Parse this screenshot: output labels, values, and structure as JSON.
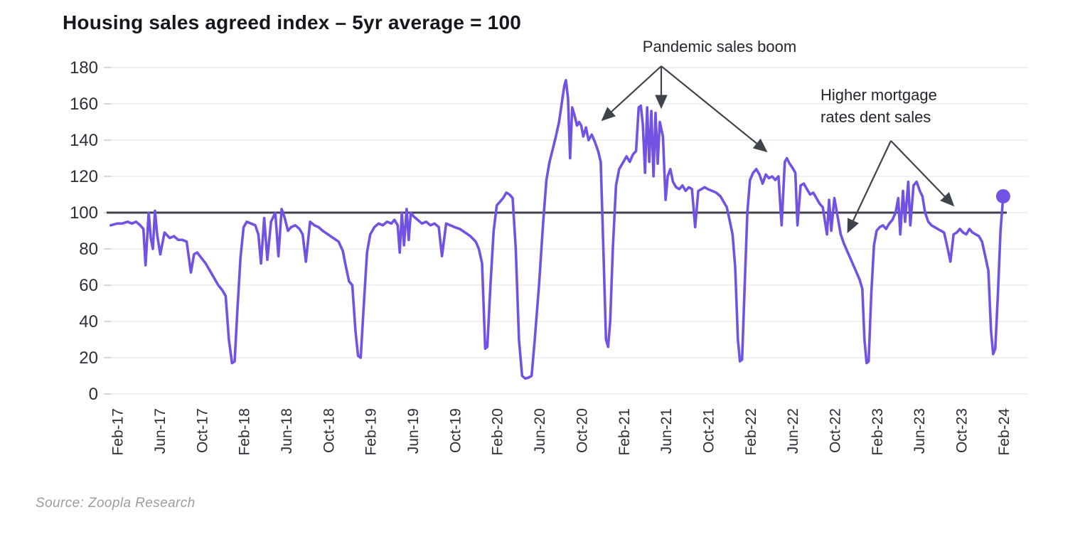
{
  "chart_data": {
    "type": "line",
    "title": "Housing sales agreed index – 5yr average = 100",
    "source": "Source:  Zoopla Research",
    "line_color": "#7152e2",
    "marker_color": "#7152e2",
    "reference_line": {
      "value": 100,
      "color": "#3f434b"
    },
    "grid_color": "#ececef",
    "tick_label_color": "#2c2f36",
    "arrow_color": "#3f434b",
    "ylim": [
      0,
      180
    ],
    "y_ticks": [
      0,
      20,
      40,
      60,
      80,
      100,
      120,
      140,
      160,
      180
    ],
    "x_tick_months": [
      0,
      4,
      8,
      12,
      16,
      20,
      24,
      28,
      32,
      36,
      40,
      44,
      48,
      52,
      56,
      60,
      64,
      68,
      72,
      76,
      80,
      84
    ],
    "x_tick_labels": [
      "Feb-17",
      "Jun-17",
      "Oct-17",
      "Feb-18",
      "Jun-18",
      "Oct-18",
      "Feb-19",
      "Jun-19",
      "Oct-19",
      "Feb-20",
      "Jun-20",
      "Oct-20",
      "Feb-21",
      "Jun-21",
      "Oct-21",
      "Feb-22",
      "Jun-22",
      "Oct-22",
      "Feb-23",
      "Jun-23",
      "Oct-23",
      "Feb-24"
    ],
    "series": [
      {
        "name": "Housing sales agreed index",
        "points": [
          [
            -0.6,
            93
          ],
          [
            0,
            94
          ],
          [
            0.5,
            94
          ],
          [
            1,
            95
          ],
          [
            1.4,
            94
          ],
          [
            1.8,
            95
          ],
          [
            2.2,
            93
          ],
          [
            2.5,
            91
          ],
          [
            2.7,
            71
          ],
          [
            3.0,
            100
          ],
          [
            3.2,
            86
          ],
          [
            3.4,
            80
          ],
          [
            3.6,
            101
          ],
          [
            3.8,
            88
          ],
          [
            4.1,
            77
          ],
          [
            4.5,
            89
          ],
          [
            5,
            86
          ],
          [
            5.4,
            87
          ],
          [
            5.8,
            85
          ],
          [
            6.2,
            85
          ],
          [
            6.6,
            84
          ],
          [
            7.0,
            67
          ],
          [
            7.3,
            77
          ],
          [
            7.6,
            78
          ],
          [
            8,
            75
          ],
          [
            8.4,
            72
          ],
          [
            8.8,
            68
          ],
          [
            9.2,
            64
          ],
          [
            9.6,
            60
          ],
          [
            10,
            57
          ],
          [
            10.3,
            54
          ],
          [
            10.6,
            30
          ],
          [
            10.9,
            17
          ],
          [
            11.15,
            18
          ],
          [
            11.4,
            45
          ],
          [
            11.7,
            75
          ],
          [
            12,
            92
          ],
          [
            12.3,
            95
          ],
          [
            12.7,
            94
          ],
          [
            13.1,
            93
          ],
          [
            13.4,
            88
          ],
          [
            13.65,
            72
          ],
          [
            13.95,
            97
          ],
          [
            14.25,
            74
          ],
          [
            14.6,
            95
          ],
          [
            15.0,
            100
          ],
          [
            15.3,
            76
          ],
          [
            15.6,
            102
          ],
          [
            15.9,
            97
          ],
          [
            16.2,
            90
          ],
          [
            16.5,
            92
          ],
          [
            16.9,
            93
          ],
          [
            17.3,
            91
          ],
          [
            17.6,
            88
          ],
          [
            17.9,
            73
          ],
          [
            18.3,
            95
          ],
          [
            18.7,
            93
          ],
          [
            19.1,
            92
          ],
          [
            19.5,
            90
          ],
          [
            20,
            88
          ],
          [
            20.5,
            86
          ],
          [
            21,
            84
          ],
          [
            21.4,
            79
          ],
          [
            21.7,
            70
          ],
          [
            22,
            62
          ],
          [
            22.3,
            60
          ],
          [
            22.6,
            35
          ],
          [
            22.85,
            21
          ],
          [
            23.1,
            20
          ],
          [
            23.4,
            50
          ],
          [
            23.7,
            78
          ],
          [
            24,
            88
          ],
          [
            24.4,
            92
          ],
          [
            24.8,
            94
          ],
          [
            25.2,
            93
          ],
          [
            25.6,
            95
          ],
          [
            26,
            94
          ],
          [
            26.3,
            96
          ],
          [
            26.6,
            93
          ],
          [
            26.8,
            78
          ],
          [
            27.0,
            100
          ],
          [
            27.2,
            82
          ],
          [
            27.45,
            102
          ],
          [
            27.65,
            85
          ],
          [
            27.85,
            100
          ],
          [
            28.1,
            98
          ],
          [
            28.5,
            96
          ],
          [
            28.9,
            94
          ],
          [
            29.3,
            95
          ],
          [
            29.7,
            93
          ],
          [
            30.1,
            94
          ],
          [
            30.5,
            92
          ],
          [
            30.8,
            76
          ],
          [
            31.2,
            94
          ],
          [
            31.6,
            93
          ],
          [
            32,
            92
          ],
          [
            32.5,
            91
          ],
          [
            33,
            89
          ],
          [
            33.5,
            87
          ],
          [
            34,
            84
          ],
          [
            34.3,
            80
          ],
          [
            34.6,
            72
          ],
          [
            34.9,
            25
          ],
          [
            35.1,
            26
          ],
          [
            35.4,
            60
          ],
          [
            35.7,
            90
          ],
          [
            36,
            104
          ],
          [
            36.3,
            106
          ],
          [
            36.6,
            108
          ],
          [
            36.9,
            111
          ],
          [
            37.2,
            110
          ],
          [
            37.5,
            108
          ],
          [
            37.8,
            80
          ],
          [
            38.1,
            30
          ],
          [
            38.4,
            10
          ],
          [
            38.7,
            8.5
          ],
          [
            39,
            9
          ],
          [
            39.3,
            10
          ],
          [
            39.6,
            30
          ],
          [
            40,
            60
          ],
          [
            40.4,
            95
          ],
          [
            40.7,
            118
          ],
          [
            41,
            128
          ],
          [
            41.3,
            135
          ],
          [
            41.6,
            142
          ],
          [
            41.9,
            150
          ],
          [
            42.2,
            162
          ],
          [
            42.4,
            170
          ],
          [
            42.55,
            173
          ],
          [
            42.75,
            163
          ],
          [
            42.95,
            130
          ],
          [
            43.15,
            158
          ],
          [
            43.4,
            153
          ],
          [
            43.6,
            148
          ],
          [
            43.8,
            150
          ],
          [
            44,
            148
          ],
          [
            44.2,
            142
          ],
          [
            44.45,
            147
          ],
          [
            44.7,
            140
          ],
          [
            45,
            143
          ],
          [
            45.3,
            139
          ],
          [
            45.6,
            134
          ],
          [
            45.85,
            128
          ],
          [
            46.1,
            80
          ],
          [
            46.35,
            30
          ],
          [
            46.55,
            26
          ],
          [
            46.75,
            40
          ],
          [
            47,
            80
          ],
          [
            47.3,
            115
          ],
          [
            47.6,
            124
          ],
          [
            48,
            128
          ],
          [
            48.3,
            131
          ],
          [
            48.6,
            128
          ],
          [
            48.9,
            132
          ],
          [
            49.2,
            134
          ],
          [
            49.45,
            158
          ],
          [
            49.65,
            159
          ],
          [
            49.85,
            148
          ],
          [
            50.05,
            122
          ],
          [
            50.25,
            158
          ],
          [
            50.45,
            128
          ],
          [
            50.65,
            156
          ],
          [
            50.85,
            120
          ],
          [
            51.05,
            155
          ],
          [
            51.25,
            127
          ],
          [
            51.45,
            150
          ],
          [
            51.75,
            142
          ],
          [
            52,
            107
          ],
          [
            52.2,
            120
          ],
          [
            52.45,
            124
          ],
          [
            52.7,
            117
          ],
          [
            53,
            114
          ],
          [
            53.3,
            113
          ],
          [
            53.6,
            115
          ],
          [
            53.9,
            112
          ],
          [
            54.2,
            114
          ],
          [
            54.5,
            113
          ],
          [
            54.8,
            92
          ],
          [
            55.1,
            112
          ],
          [
            55.4,
            113
          ],
          [
            55.7,
            114
          ],
          [
            56,
            113
          ],
          [
            56.4,
            112
          ],
          [
            56.8,
            111
          ],
          [
            57.2,
            109
          ],
          [
            57.5,
            106
          ],
          [
            57.8,
            103
          ],
          [
            58.1,
            95
          ],
          [
            58.35,
            88
          ],
          [
            58.6,
            70
          ],
          [
            58.85,
            30
          ],
          [
            59.05,
            18
          ],
          [
            59.25,
            19
          ],
          [
            59.5,
            60
          ],
          [
            59.75,
            100
          ],
          [
            60,
            118
          ],
          [
            60.3,
            122
          ],
          [
            60.6,
            124
          ],
          [
            60.9,
            121
          ],
          [
            61.2,
            116
          ],
          [
            61.5,
            121
          ],
          [
            61.8,
            119
          ],
          [
            62.1,
            120
          ],
          [
            62.4,
            118
          ],
          [
            62.7,
            120
          ],
          [
            63,
            93
          ],
          [
            63.3,
            128
          ],
          [
            63.5,
            130
          ],
          [
            63.75,
            127
          ],
          [
            64,
            125
          ],
          [
            64.3,
            122
          ],
          [
            64.5,
            93
          ],
          [
            64.8,
            115
          ],
          [
            65.1,
            116
          ],
          [
            65.4,
            113
          ],
          [
            65.7,
            110
          ],
          [
            66,
            111
          ],
          [
            66.3,
            108
          ],
          [
            66.6,
            105
          ],
          [
            66.9,
            103
          ],
          [
            67.3,
            88
          ],
          [
            67.5,
            107
          ],
          [
            67.7,
            90
          ],
          [
            68,
            108
          ],
          [
            68.3,
            98
          ],
          [
            68.6,
            88
          ],
          [
            68.9,
            83
          ],
          [
            69.2,
            79
          ],
          [
            69.5,
            75
          ],
          [
            69.8,
            71
          ],
          [
            70.1,
            67
          ],
          [
            70.4,
            63
          ],
          [
            70.65,
            58
          ],
          [
            70.85,
            30
          ],
          [
            71.05,
            17
          ],
          [
            71.25,
            18
          ],
          [
            71.5,
            55
          ],
          [
            71.75,
            82
          ],
          [
            72,
            90
          ],
          [
            72.3,
            92
          ],
          [
            72.6,
            93
          ],
          [
            72.9,
            91
          ],
          [
            73.2,
            94
          ],
          [
            73.5,
            96
          ],
          [
            73.8,
            100
          ],
          [
            74.05,
            108
          ],
          [
            74.25,
            88
          ],
          [
            74.5,
            112
          ],
          [
            74.7,
            95
          ],
          [
            75,
            117
          ],
          [
            75.2,
            93
          ],
          [
            75.5,
            115
          ],
          [
            75.8,
            117
          ],
          [
            76.1,
            112
          ],
          [
            76.35,
            109
          ],
          [
            76.6,
            100
          ],
          [
            76.9,
            95
          ],
          [
            77.2,
            93
          ],
          [
            77.5,
            92
          ],
          [
            77.8,
            91
          ],
          [
            78.1,
            90
          ],
          [
            78.4,
            89
          ],
          [
            78.75,
            80
          ],
          [
            79,
            73
          ],
          [
            79.3,
            88
          ],
          [
            79.6,
            89
          ],
          [
            79.9,
            91
          ],
          [
            80.2,
            89
          ],
          [
            80.5,
            88
          ],
          [
            80.8,
            91
          ],
          [
            81.1,
            89
          ],
          [
            81.4,
            88
          ],
          [
            81.7,
            87
          ],
          [
            82,
            84
          ],
          [
            82.3,
            76
          ],
          [
            82.6,
            68
          ],
          [
            82.85,
            35
          ],
          [
            83.05,
            22
          ],
          [
            83.25,
            25
          ],
          [
            83.5,
            55
          ],
          [
            83.75,
            90
          ],
          [
            84,
            109
          ]
        ]
      }
    ],
    "end_marker": {
      "month": 84,
      "value": 109
    },
    "annotations": [
      {
        "id": "pandemic",
        "text": "Pandemic sales boom",
        "vertex": [
          930,
          93
        ],
        "targets": [
          [
            848,
            168
          ],
          [
            930,
            150
          ],
          [
            1077,
            212
          ]
        ]
      },
      {
        "id": "mortgage",
        "text": "Higher mortgage\nrates dent sales",
        "vertex": [
          1253,
          198
        ],
        "targets": [
          [
            1193,
            325
          ],
          [
            1340,
            288
          ]
        ]
      }
    ]
  }
}
